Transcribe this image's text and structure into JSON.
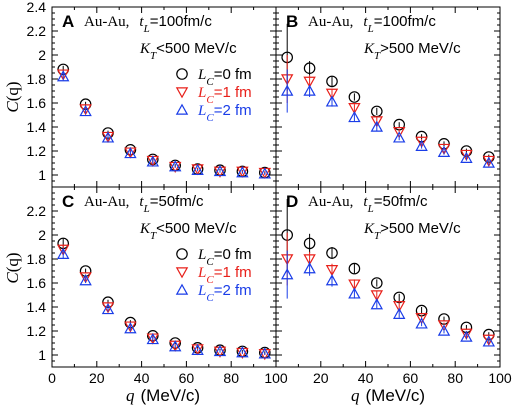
{
  "labels": {
    "ylabel": "C(q)",
    "ylabel_main": "C",
    "ylabel_arg": "(q)",
    "xlabel_q": "q",
    "xlabel_unit": "(MeV/c)"
  },
  "colors": {
    "LC0": "#000000",
    "LC1": "#e8201a",
    "LC2": "#1a3de8"
  },
  "legend": [
    {
      "prefix": "L",
      "sub": "C",
      "suffix": "=0 fm",
      "marker": "circle"
    },
    {
      "prefix": "L",
      "sub": "C",
      "suffix": "=1 fm",
      "marker": "triangle-down"
    },
    {
      "prefix": "L",
      "sub": "C",
      "suffix": "=2 fm",
      "marker": "triangle-up"
    }
  ],
  "chart_data": [
    {
      "type": "scatter",
      "panel": "A",
      "system": "Au-Au,",
      "tL": {
        "sym": "t",
        "sub": "L",
        "value": "=100fm/c"
      },
      "KT": {
        "sym": "K",
        "sub": "T",
        "value": "<500 MeV/c"
      },
      "xlim": [
        0,
        100
      ],
      "ylim": [
        0.9,
        2.4
      ],
      "xticks": [
        0,
        20,
        40,
        60,
        80,
        100
      ],
      "yticks": [
        "1",
        "1.2",
        "1.4",
        "1.6",
        "1.8",
        "2",
        "2.2",
        "2.4"
      ],
      "x": [
        5,
        15,
        25,
        35,
        45,
        55,
        65,
        75,
        85,
        95
      ],
      "series": [
        {
          "name": "LC=0 fm",
          "values": [
            1.88,
            1.59,
            1.35,
            1.21,
            1.13,
            1.08,
            1.05,
            1.04,
            1.03,
            1.02
          ],
          "err": [
            0.03,
            0.02,
            0.02,
            0.02,
            0.02,
            0.01,
            0.01,
            0.01,
            0.01,
            0.01
          ]
        },
        {
          "name": "LC=1 fm",
          "values": [
            1.84,
            1.55,
            1.32,
            1.19,
            1.12,
            1.07,
            1.05,
            1.03,
            1.03,
            1.02
          ],
          "err": [
            0.03,
            0.02,
            0.02,
            0.02,
            0.02,
            0.01,
            0.01,
            0.01,
            0.01,
            0.01
          ]
        },
        {
          "name": "LC=2 fm",
          "values": [
            1.82,
            1.53,
            1.31,
            1.18,
            1.11,
            1.07,
            1.04,
            1.03,
            1.02,
            1.01
          ],
          "err": [
            0.03,
            0.02,
            0.02,
            0.02,
            0.02,
            0.01,
            0.01,
            0.01,
            0.01,
            0.01
          ]
        }
      ]
    },
    {
      "type": "scatter",
      "panel": "B",
      "system": "Au-Au,",
      "tL": {
        "sym": "t",
        "sub": "L",
        "value": "=100fm/c"
      },
      "KT": {
        "sym": "K",
        "sub": "T",
        "value": ">500 MeV/c"
      },
      "xlim": [
        0,
        100
      ],
      "ylim": [
        0.9,
        2.4
      ],
      "xticks": [
        0,
        20,
        40,
        60,
        80,
        100
      ],
      "yticks": [],
      "x": [
        5,
        15,
        25,
        35,
        45,
        55,
        65,
        75,
        85,
        95
      ],
      "series": [
        {
          "name": "LC=0 fm",
          "values": [
            1.98,
            1.89,
            1.78,
            1.65,
            1.53,
            1.42,
            1.32,
            1.26,
            1.2,
            1.15
          ],
          "err": [
            0.28,
            0.06,
            0.04,
            0.03,
            0.03,
            0.02,
            0.02,
            0.02,
            0.02,
            0.02
          ]
        },
        {
          "name": "LC=1 fm",
          "values": [
            1.8,
            1.78,
            1.68,
            1.56,
            1.45,
            1.36,
            1.28,
            1.22,
            1.17,
            1.12
          ],
          "err": [
            0.2,
            0.05,
            0.04,
            0.03,
            0.03,
            0.02,
            0.02,
            0.02,
            0.02,
            0.02
          ]
        },
        {
          "name": "LC=2 fm",
          "values": [
            1.7,
            1.7,
            1.61,
            1.48,
            1.4,
            1.31,
            1.24,
            1.19,
            1.14,
            1.1
          ],
          "err": [
            0.18,
            0.05,
            0.04,
            0.03,
            0.03,
            0.02,
            0.02,
            0.02,
            0.02,
            0.02
          ]
        }
      ]
    },
    {
      "type": "scatter",
      "panel": "C",
      "system": "Au-Au,",
      "tL": {
        "sym": "t",
        "sub": "L",
        "value": "=50fm/c"
      },
      "KT": {
        "sym": "K",
        "sub": "T",
        "value": "<500 MeV/c"
      },
      "xlim": [
        0,
        100
      ],
      "ylim": [
        0.9,
        2.4
      ],
      "xticks": [
        0,
        20,
        40,
        60,
        80,
        100
      ],
      "yticks": [
        "1",
        "1.2",
        "1.4",
        "1.6",
        "1.8",
        "2",
        "2.2"
      ],
      "x": [
        5,
        15,
        25,
        35,
        45,
        55,
        65,
        75,
        85,
        95
      ],
      "series": [
        {
          "name": "LC=0 fm",
          "values": [
            1.93,
            1.7,
            1.44,
            1.27,
            1.16,
            1.1,
            1.06,
            1.04,
            1.03,
            1.02
          ],
          "err": [
            0.04,
            0.02,
            0.02,
            0.02,
            0.02,
            0.01,
            0.01,
            0.01,
            0.01,
            0.01
          ]
        },
        {
          "name": "LC=1 fm",
          "values": [
            1.88,
            1.65,
            1.4,
            1.24,
            1.14,
            1.08,
            1.05,
            1.03,
            1.02,
            1.01
          ],
          "err": [
            0.04,
            0.02,
            0.02,
            0.02,
            0.02,
            0.01,
            0.01,
            0.01,
            0.01,
            0.01
          ]
        },
        {
          "name": "LC=2 fm",
          "values": [
            1.84,
            1.62,
            1.38,
            1.22,
            1.13,
            1.07,
            1.04,
            1.03,
            1.02,
            1.01
          ],
          "err": [
            0.04,
            0.02,
            0.02,
            0.02,
            0.02,
            0.01,
            0.01,
            0.01,
            0.01,
            0.01
          ]
        }
      ]
    },
    {
      "type": "scatter",
      "panel": "D",
      "system": "Au-Au,",
      "tL": {
        "sym": "t",
        "sub": "L",
        "value": "=50fm/c"
      },
      "KT": {
        "sym": "K",
        "sub": "T",
        "value": ">500 MeV/c"
      },
      "xlim": [
        0,
        100
      ],
      "ylim": [
        0.9,
        2.4
      ],
      "xticks": [
        0,
        20,
        40,
        60,
        80,
        100
      ],
      "yticks": [],
      "x": [
        5,
        15,
        25,
        35,
        45,
        55,
        65,
        75,
        85,
        95
      ],
      "series": [
        {
          "name": "LC=0 fm",
          "values": [
            2.0,
            1.93,
            1.85,
            1.72,
            1.6,
            1.48,
            1.37,
            1.3,
            1.23,
            1.17
          ],
          "err": [
            0.3,
            0.08,
            0.05,
            0.04,
            0.03,
            0.03,
            0.03,
            0.02,
            0.02,
            0.02
          ]
        },
        {
          "name": "LC=1 fm",
          "values": [
            1.8,
            1.8,
            1.71,
            1.59,
            1.5,
            1.41,
            1.31,
            1.25,
            1.18,
            1.13
          ],
          "err": [
            0.22,
            0.06,
            0.05,
            0.04,
            0.03,
            0.03,
            0.02,
            0.02,
            0.02,
            0.02
          ]
        },
        {
          "name": "LC=2 fm",
          "values": [
            1.67,
            1.72,
            1.62,
            1.51,
            1.42,
            1.34,
            1.26,
            1.2,
            1.15,
            1.11
          ],
          "err": [
            0.2,
            0.06,
            0.05,
            0.04,
            0.03,
            0.03,
            0.02,
            0.02,
            0.02,
            0.02
          ]
        }
      ]
    }
  ]
}
